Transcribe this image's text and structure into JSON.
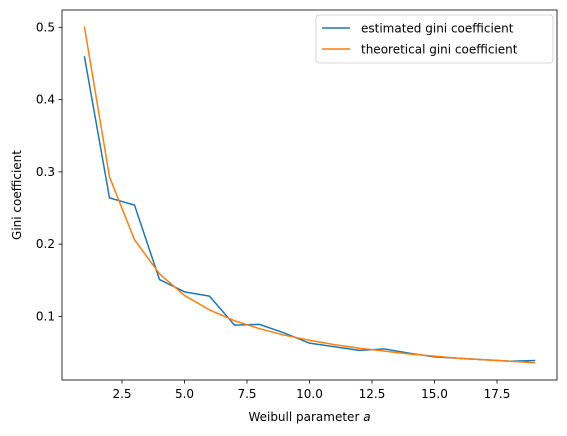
{
  "chart_data": {
    "type": "line",
    "title": "",
    "xlabel": "Weibull parameter",
    "xlabel_var": "a",
    "ylabel": "Gini coefficient",
    "xlim": [
      0.1,
      19.9
    ],
    "ylim": [
      0.012,
      0.524
    ],
    "xticks": [
      2.5,
      5.0,
      7.5,
      10.0,
      12.5,
      15.0,
      17.5
    ],
    "xtick_labels": [
      "2.5",
      "5.0",
      "7.5",
      "10.0",
      "12.5",
      "15.0",
      "17.5"
    ],
    "yticks": [
      0.1,
      0.2,
      0.3,
      0.4,
      0.5
    ],
    "ytick_labels": [
      "0.1",
      "0.2",
      "0.3",
      "0.4",
      "0.5"
    ],
    "grid": false,
    "legend_position": "top-right",
    "x": [
      1,
      2,
      3,
      4,
      5,
      6,
      7,
      8,
      9,
      10,
      11,
      12,
      13,
      14,
      15,
      16,
      17,
      18,
      19
    ],
    "series": [
      {
        "name": "estimated gini coefficient",
        "color": "#1f77b4",
        "values": [
          0.459,
          0.264,
          0.254,
          0.151,
          0.134,
          0.128,
          0.088,
          0.089,
          0.077,
          0.063,
          0.058,
          0.053,
          0.055,
          0.049,
          0.044,
          0.042,
          0.04,
          0.038,
          0.039
        ]
      },
      {
        "name": "theoretical gini coefficient",
        "color": "#ff7f0e",
        "values": [
          0.5,
          0.293,
          0.206,
          0.159,
          0.129,
          0.109,
          0.094,
          0.083,
          0.074,
          0.067,
          0.061,
          0.056,
          0.052,
          0.048,
          0.045,
          0.042,
          0.04,
          0.038,
          0.036
        ]
      }
    ]
  }
}
